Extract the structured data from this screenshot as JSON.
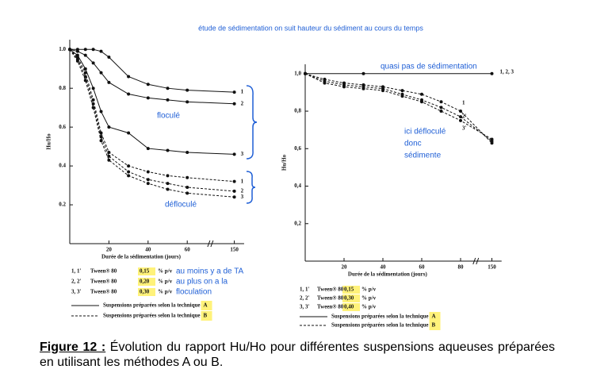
{
  "annotation": "étude de sédimentation  on suit hauteur du sédiment au cours du temps",
  "chart_data": [
    {
      "type": "line",
      "ylabel": "Hu/Ho",
      "xlabel": "Durée de la sédimentation (jours)",
      "xlim": [
        0,
        155
      ],
      "xbreak": [
        70,
        140
      ],
      "ylim": [
        0,
        1.05
      ],
      "xticks": [
        20,
        40,
        60,
        150
      ],
      "yticks": [
        {
          "value": 0.2,
          "label": "0.2"
        },
        0.4,
        0.6,
        0.8,
        {
          "value": 1.0,
          "label": "1.0"
        }
      ],
      "x": [
        0,
        4,
        8,
        12,
        16,
        20,
        30,
        40,
        50,
        60,
        150
      ],
      "series": [
        {
          "name": "1",
          "color": "#111111",
          "dashed": false,
          "values": [
            1.0,
            1.0,
            1.0,
            1.0,
            0.99,
            0.96,
            0.86,
            0.82,
            0.8,
            0.79,
            0.78
          ]
        },
        {
          "name": "2",
          "color": "#111111",
          "dashed": false,
          "values": [
            1.0,
            0.99,
            0.97,
            0.93,
            0.88,
            0.83,
            0.77,
            0.75,
            0.74,
            0.73,
            0.72
          ]
        },
        {
          "name": "3",
          "color": "#111111",
          "dashed": false,
          "values": [
            1.0,
            0.97,
            0.9,
            0.8,
            0.68,
            0.6,
            0.57,
            0.49,
            0.48,
            0.47,
            0.46
          ]
        },
        {
          "name": "1",
          "color": "#111111",
          "dashed": true,
          "values": [
            1.0,
            0.96,
            0.88,
            0.74,
            0.57,
            0.47,
            0.4,
            0.37,
            0.35,
            0.34,
            0.32
          ]
        },
        {
          "name": "2",
          "color": "#111111",
          "dashed": true,
          "values": [
            1.0,
            0.95,
            0.86,
            0.72,
            0.55,
            0.45,
            0.37,
            0.33,
            0.31,
            0.29,
            0.27
          ]
        },
        {
          "name": "3",
          "color": "#111111",
          "dashed": true,
          "values": [
            1.0,
            0.94,
            0.84,
            0.7,
            0.53,
            0.43,
            0.35,
            0.31,
            0.28,
            0.26,
            0.24
          ]
        }
      ],
      "legend": [
        {
          "code": "1, 1'",
          "product": "Tween® 80",
          "conc": "0,15",
          "unit": "% p/v"
        },
        {
          "code": "2, 2'",
          "product": "Tween® 80",
          "conc": "0,20",
          "unit": "% p/v"
        },
        {
          "code": "3, 3'",
          "product": "Tween® 80",
          "conc": "0,30",
          "unit": "% p/v"
        }
      ],
      "notes": [
        "au moins y a de TA",
        "au plus on a la",
        "floculation"
      ],
      "techniques": [
        {
          "text": "Suspensions préparées selon la technique",
          "letter": "A"
        },
        {
          "text": "Suspensions préparées selon la technique",
          "letter": "B"
        }
      ],
      "annotations": [
        "floculé",
        "défloculé"
      ]
    },
    {
      "type": "line",
      "ylabel": "Hu/Ho",
      "xlabel": "Durée de la sédimentation (jours)",
      "xlim": [
        0,
        155
      ],
      "xbreak": [
        85,
        145
      ],
      "ylim": [
        0,
        1.05
      ],
      "xticks": [
        20,
        40,
        60,
        80,
        150
      ],
      "yticks": [
        {
          "value": 0.2,
          "label": "0,2"
        },
        {
          "value": 0.4,
          "label": "0,4"
        },
        {
          "value": 0.6,
          "label": "0,6"
        },
        {
          "value": 0.8,
          "label": "0,8"
        },
        {
          "value": 1.0,
          "label": "1,0"
        }
      ],
      "x": [
        0,
        10,
        20,
        30,
        40,
        50,
        60,
        70,
        80,
        150
      ],
      "series": [
        {
          "name": "1, 2, 3",
          "color": "#111111",
          "dashed": false,
          "values": [
            1.0,
            null,
            null,
            1.0,
            null,
            null,
            null,
            null,
            null,
            1.0
          ]
        },
        {
          "name": "1",
          "color": "#111111",
          "dashed": true,
          "values": [
            1.0,
            0.97,
            0.95,
            0.94,
            0.93,
            0.91,
            0.89,
            0.85,
            0.8,
            0.63
          ]
        },
        {
          "name": "2'",
          "color": "#111111",
          "dashed": true,
          "values": [
            1.0,
            0.96,
            0.94,
            0.93,
            0.92,
            0.89,
            0.86,
            0.82,
            0.77,
            0.64
          ]
        },
        {
          "name": "3'",
          "color": "#111111",
          "dashed": true,
          "values": [
            1.0,
            0.95,
            0.93,
            0.92,
            0.91,
            0.88,
            0.85,
            0.8,
            0.75,
            0.65
          ]
        }
      ],
      "legend": [
        {
          "code": "1, 1'",
          "product": "Tween® 80",
          "conc": "0,15",
          "unit": "% p/v"
        },
        {
          "code": "2, 2'",
          "product": "Tween® 80",
          "conc": "0,30",
          "unit": "% p/v"
        },
        {
          "code": "3, 3'",
          "product": "Tween® 80",
          "conc": "0,40",
          "unit": "% p/v"
        }
      ],
      "techniques": [
        {
          "text": "Suspensions préparées selon la technique",
          "letter": "A"
        },
        {
          "text": "Suspensions préparées selon la technique",
          "letter": "B"
        }
      ],
      "annotations": [
        "quasi pas de sédimentation",
        "ici défloculé",
        "donc",
        "sédimente"
      ]
    }
  ],
  "caption": {
    "label": "Figure 12 :",
    "text": "Évolution du rapport Hu/Ho pour différentes suspensions aqueuses préparées en utilisant les méthodes A ou B."
  }
}
